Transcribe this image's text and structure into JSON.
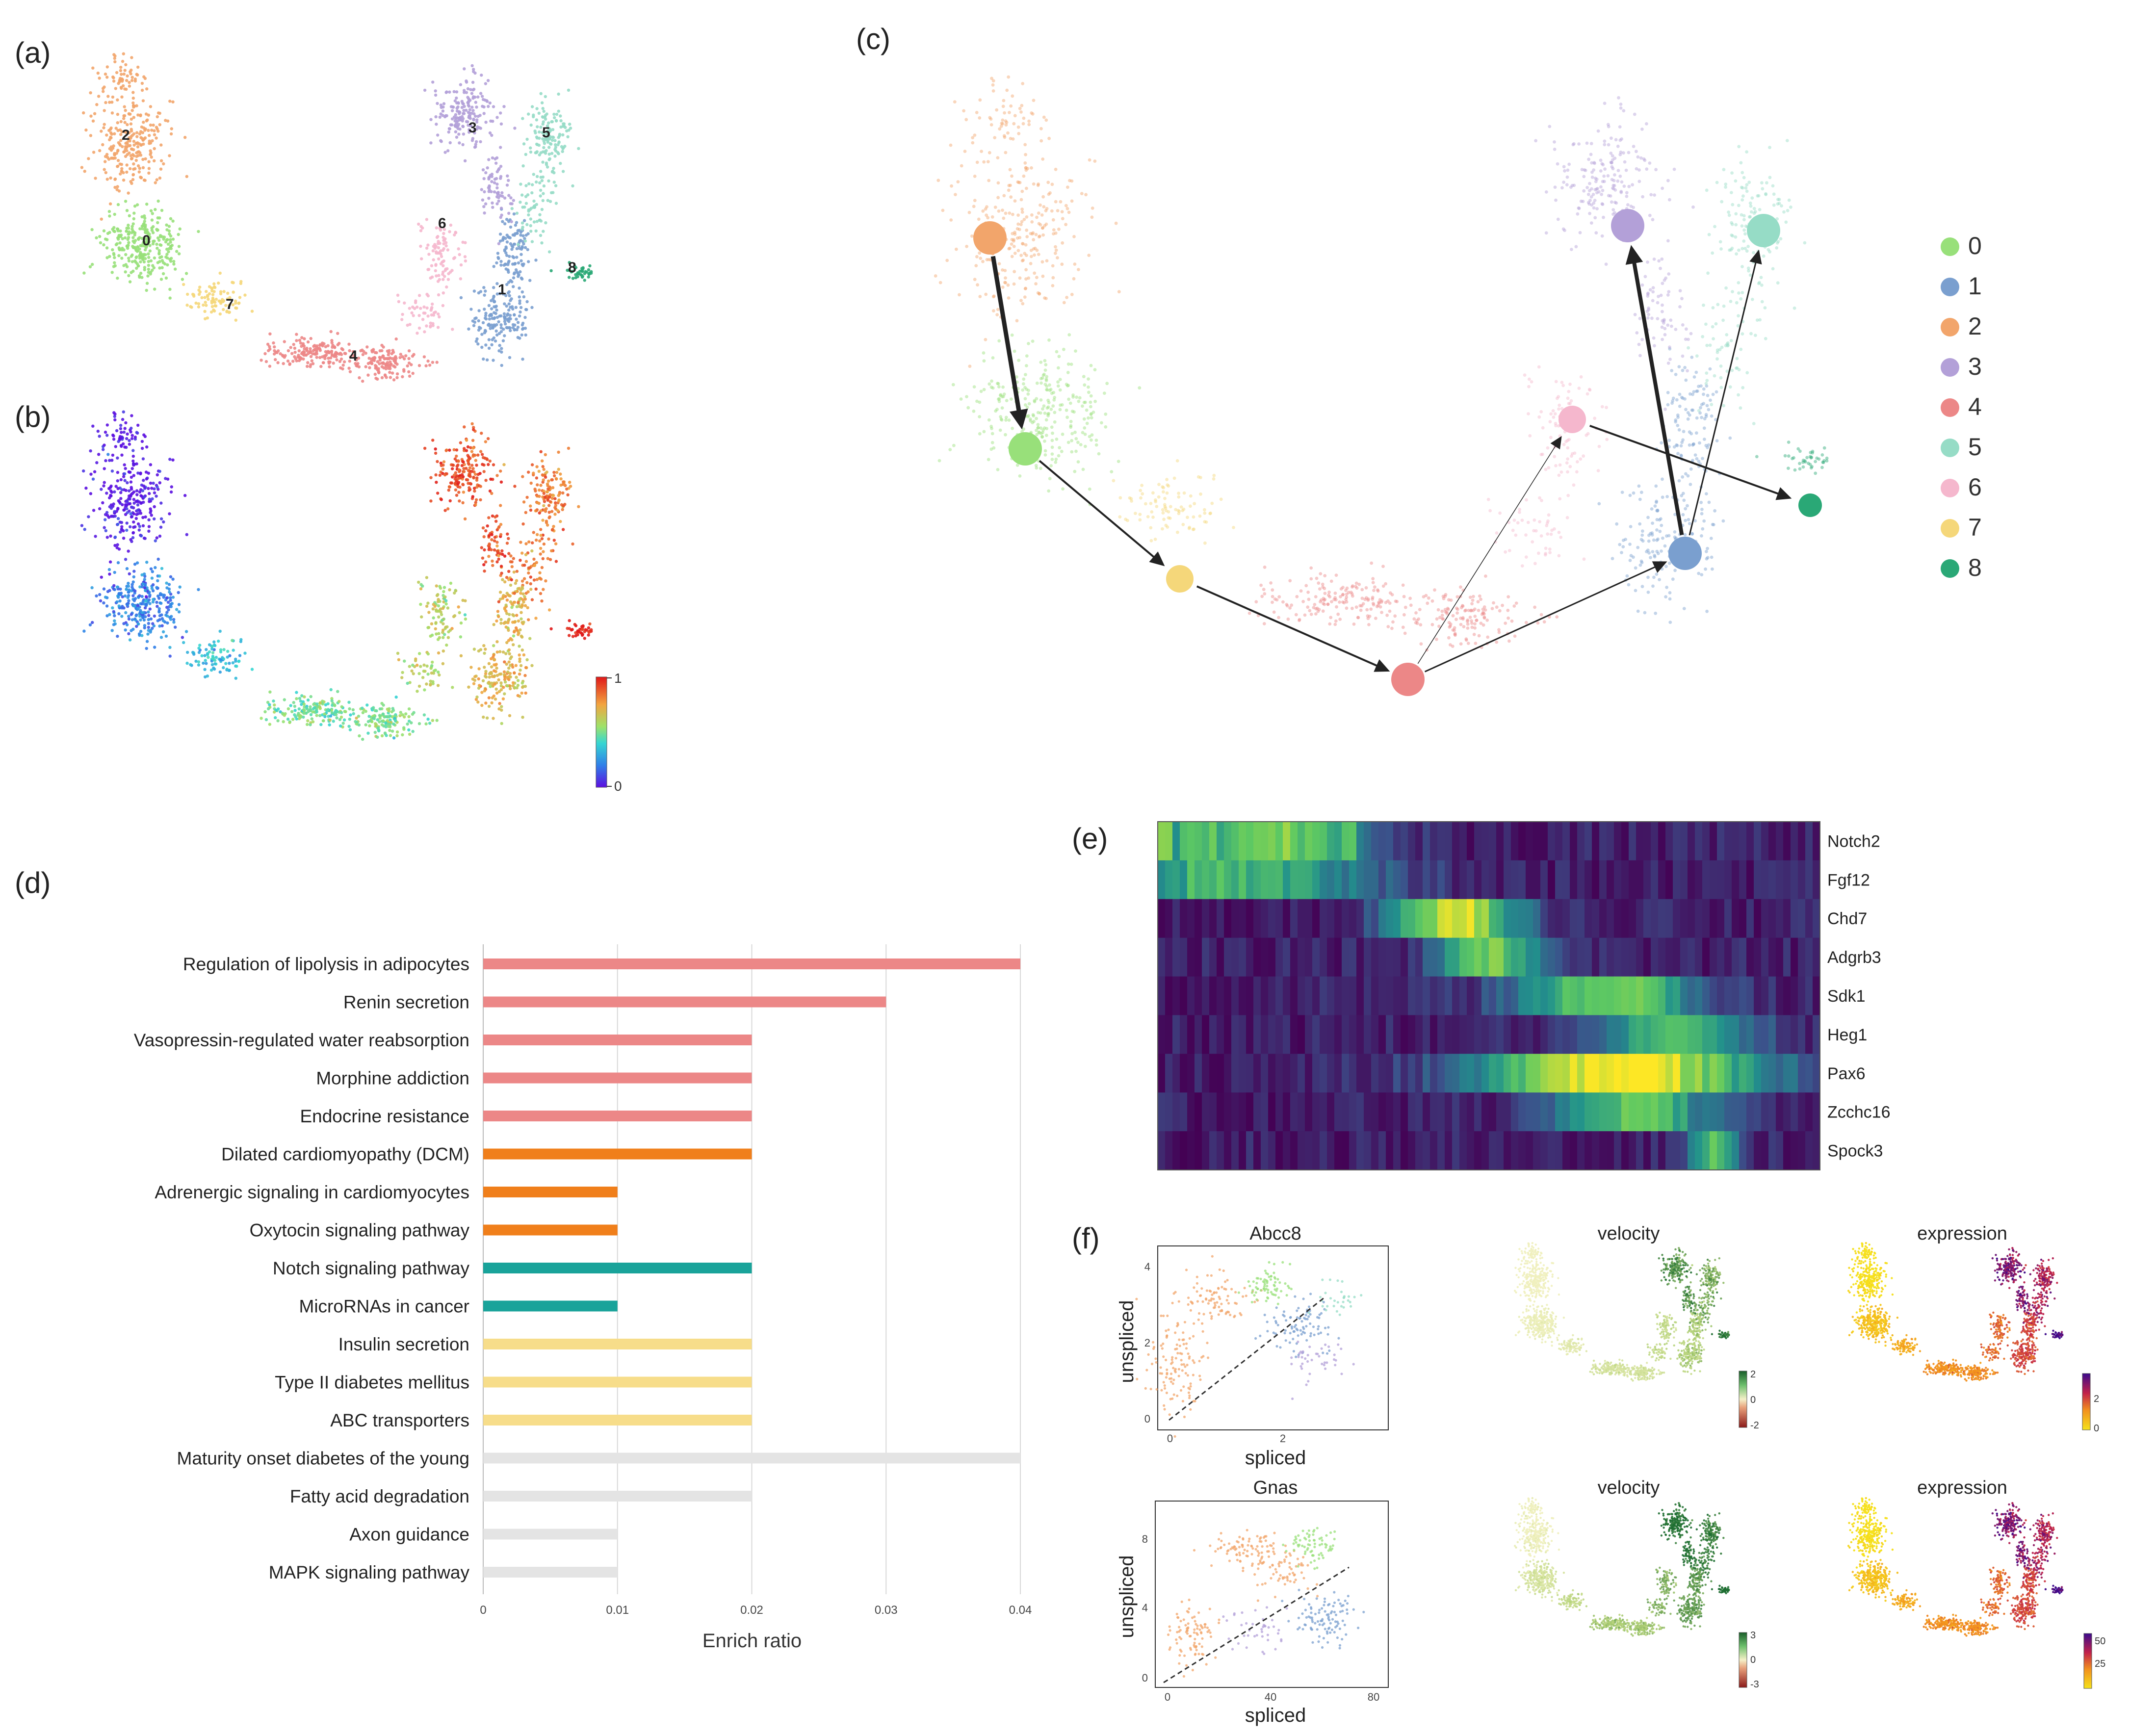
{
  "panels": {
    "a": {
      "label": "(a)",
      "cluster_labels": [
        "0",
        "1",
        "2",
        "3",
        "4",
        "5",
        "6",
        "7",
        "8"
      ]
    },
    "b": {
      "label": "(b)",
      "colorbar_ticks": [
        "1",
        "0"
      ]
    },
    "c": {
      "label": "(c)"
    },
    "d": {
      "label": "(d)"
    },
    "e": {
      "label": "(e)"
    },
    "f": {
      "label": "(f)"
    }
  },
  "legend": {
    "items": [
      {
        "label": "0",
        "color": "#98e07a"
      },
      {
        "label": "1",
        "color": "#7a9fcf"
      },
      {
        "label": "2",
        "color": "#f2a56b"
      },
      {
        "label": "3",
        "color": "#b3a0d8"
      },
      {
        "label": "4",
        "color": "#ec8787"
      },
      {
        "label": "5",
        "color": "#96dcc6"
      },
      {
        "label": "6",
        "color": "#f5b7cd"
      },
      {
        "label": "7",
        "color": "#f5d77a"
      },
      {
        "label": "8",
        "color": "#2aa876"
      }
    ]
  },
  "chart_data": [
    {
      "type": "bar",
      "panel": "d",
      "orientation": "horizontal",
      "categories": [
        "Regulation of lipolysis in adipocytes",
        "Renin secretion",
        "Vasopressin-regulated water reabsorption",
        "Morphine addiction",
        "Endocrine resistance",
        "Dilated cardiomyopathy (DCM)",
        "Adrenergic signaling in cardiomyocytes",
        "Oxytocin signaling pathway",
        "Notch signaling pathway",
        "MicroRNAs in cancer",
        "Insulin secretion",
        "Type II diabetes mellitus",
        "ABC transporters",
        "Maturity onset diabetes of the young",
        "Fatty acid degradation",
        "Axon guidance",
        "MAPK signaling pathway"
      ],
      "values": [
        0.04,
        0.03,
        0.02,
        0.02,
        0.02,
        0.02,
        0.01,
        0.01,
        0.02,
        0.01,
        0.02,
        0.02,
        0.02,
        0.04,
        0.02,
        0.01,
        0.01
      ],
      "bar_colors": [
        "#ec8787",
        "#ec8787",
        "#ec8787",
        "#ec8787",
        "#ec8787",
        "#f07f1b",
        "#f07f1b",
        "#f07f1b",
        "#19a39a",
        "#19a39a",
        "#f7dd8a",
        "#f7dd8a",
        "#f7dd8a",
        "#e4e4e4",
        "#e4e4e4",
        "#e4e4e4",
        "#e4e4e4"
      ],
      "xlabel": "Enrich ratio",
      "xticks": [
        "0",
        "0.01",
        "0.02",
        "0.03",
        "0.04"
      ],
      "xlim": [
        0,
        0.04
      ],
      "grid": true
    },
    {
      "type": "heatmap",
      "panel": "e",
      "rows": [
        "Notch2",
        "Fgf12",
        "Chd7",
        "Adgrb3",
        "Sdk1",
        "Heg1",
        "Pax6",
        "Zcchc16",
        "Spock3"
      ],
      "colormap": "viridis"
    },
    {
      "type": "scatter",
      "panel": "f",
      "title": "Abcc8",
      "xlabel": "spliced",
      "ylabel": "unspliced",
      "xticks": [
        "0",
        "2"
      ],
      "yticks": [
        "0",
        "2",
        "4"
      ],
      "xlim": [
        0,
        4
      ],
      "ylim": [
        0,
        4.5
      ]
    },
    {
      "type": "scatter",
      "panel": "f",
      "title": "Gnas",
      "xlabel": "spliced",
      "ylabel": "unspliced",
      "xticks": [
        "0",
        "40",
        "80"
      ],
      "yticks": [
        "0",
        "4",
        "8"
      ],
      "xlim": [
        0,
        85
      ],
      "ylim": [
        0,
        9.5
      ]
    }
  ],
  "panel_f": {
    "row1": {
      "velocity_title": "velocity",
      "velocity_ticks": [
        "2",
        "0",
        "-2"
      ],
      "expression_title": "expression",
      "expression_ticks": [
        "2",
        "0"
      ]
    },
    "row2": {
      "velocity_title": "velocity",
      "velocity_ticks": [
        "3",
        "0",
        "-3"
      ],
      "expression_title": "expression",
      "expression_ticks": [
        "50",
        "25"
      ]
    }
  }
}
